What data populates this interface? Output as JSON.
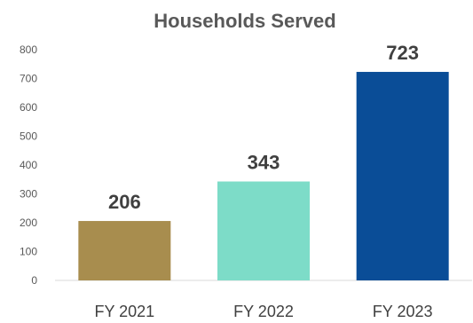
{
  "chart_data": {
    "type": "bar",
    "title": "Households Served",
    "categories": [
      "FY 2021",
      "FY 2022",
      "FY 2023"
    ],
    "values": [
      206,
      343,
      723
    ],
    "colors": [
      "#A88D4E",
      "#7DDCC8",
      "#0A4D97"
    ],
    "ylim": [
      0,
      800
    ],
    "yticks": [
      0,
      100,
      200,
      300,
      400,
      500,
      600,
      700,
      800
    ],
    "grid": false,
    "legend": "none",
    "xlabel": "",
    "ylabel": ""
  }
}
